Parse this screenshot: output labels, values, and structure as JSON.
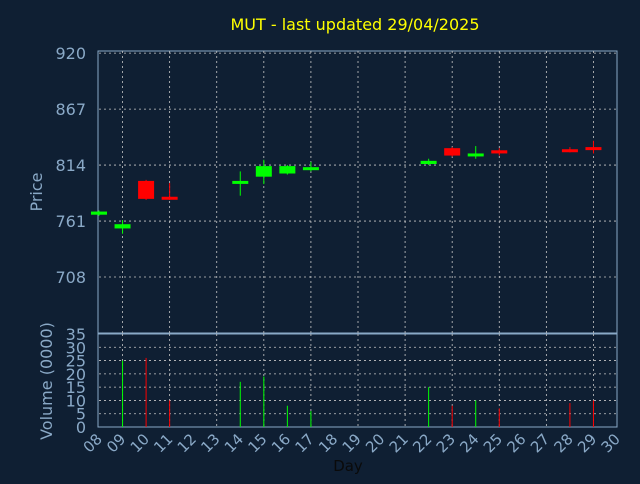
{
  "chart_data": {
    "type": "candlestick",
    "title": "MUT - last updated 29/04/2025",
    "xlabel": "Day",
    "price_panel": {
      "ylabel": "Price",
      "ylim": [
        655,
        922
      ],
      "y_ticks": [
        "920",
        "867",
        "814",
        "761",
        "708"
      ],
      "y_tick_values": [
        920,
        867,
        814,
        761,
        708
      ]
    },
    "volume_panel": {
      "ylabel": "Volume (0000)",
      "ylim": [
        0,
        35
      ],
      "y_ticks": [
        "35",
        "30",
        "25",
        "20",
        "15",
        "10",
        "5",
        "0"
      ],
      "y_tick_values": [
        35,
        30,
        25,
        20,
        15,
        10,
        5,
        0
      ]
    },
    "x_ticks": [
      "08",
      "09",
      "10",
      "11",
      "12",
      "13",
      "14",
      "15",
      "16",
      "17",
      "18",
      "19",
      "20",
      "21",
      "22",
      "23",
      "24",
      "25",
      "26",
      "27",
      "28",
      "29",
      "30"
    ],
    "grid": true,
    "colors": {
      "up": "#00ff00",
      "down": "#ff0000",
      "title": "#ffff00",
      "axis_text": "#8aa9c7",
      "frame": "#8aa9c7",
      "grid": "#c8c8c8"
    },
    "candles": [
      {
        "day": "08",
        "open": 767,
        "close": 770,
        "high": 771,
        "low": 766,
        "volume": 0
      },
      {
        "day": "09",
        "open": 754,
        "close": 758,
        "high": 762,
        "low": 749,
        "volume": 25
      },
      {
        "day": "10",
        "open": 799,
        "close": 782,
        "high": 800,
        "low": 781,
        "volume": 26
      },
      {
        "day": "11",
        "open": 784,
        "close": 782,
        "high": 797,
        "low": 781,
        "volume": 10
      },
      {
        "day": "14",
        "open": 798,
        "close": 799,
        "high": 808,
        "low": 785,
        "volume": 17
      },
      {
        "day": "15",
        "open": 803,
        "close": 813,
        "high": 819,
        "low": 796,
        "volume": 19
      },
      {
        "day": "16",
        "open": 806,
        "close": 813,
        "high": 814,
        "low": 805,
        "volume": 8
      },
      {
        "day": "17",
        "open": 810,
        "close": 812,
        "high": 817,
        "low": 808,
        "volume": 6
      },
      {
        "day": "22",
        "open": 815,
        "close": 818,
        "high": 820,
        "low": 814,
        "volume": 15
      },
      {
        "day": "23",
        "open": 830,
        "close": 823,
        "high": 831,
        "low": 822,
        "volume": 8
      },
      {
        "day": "24",
        "open": 823,
        "close": 825,
        "high": 832,
        "low": 820,
        "volume": 10
      },
      {
        "day": "25",
        "open": 828,
        "close": 825,
        "high": 830,
        "low": 823,
        "volume": 7
      },
      {
        "day": "28",
        "open": 829,
        "close": 828,
        "high": 831,
        "low": 826,
        "volume": 9
      },
      {
        "day": "29",
        "open": 831,
        "close": 829,
        "high": 837,
        "low": 825,
        "volume": 10
      }
    ]
  }
}
